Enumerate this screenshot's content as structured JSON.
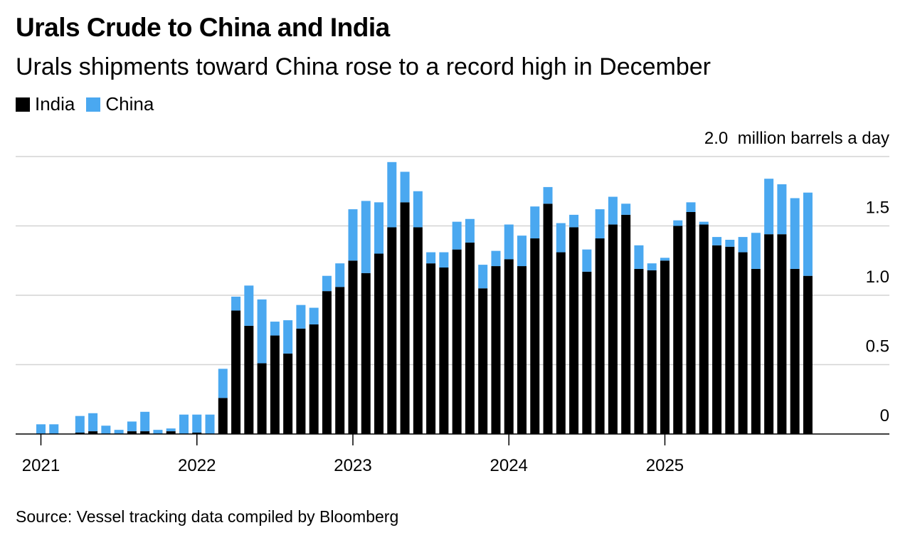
{
  "title": "Urals Crude to China and India",
  "subtitle": "Urals shipments toward China rose to a record high in December",
  "legend": [
    {
      "label": "India",
      "color": "#000000"
    },
    {
      "label": "China",
      "color": "#4aa8f0"
    }
  ],
  "unit_label": "million barrels a day",
  "source": "Source: Vessel tracking data compiled by Bloomberg",
  "chart_data": {
    "type": "bar",
    "stacked": true,
    "title": "Urals Crude to China and India",
    "subtitle": "Urals shipments toward China rose to a record high in December",
    "ylabel": "million barrels a day",
    "ylim": [
      0,
      2.0
    ],
    "yticks": [
      {
        "value": 0,
        "label": "0"
      },
      {
        "value": 0.5,
        "label": "0.5"
      },
      {
        "value": 1.0,
        "label": "1.0"
      },
      {
        "value": 1.5,
        "label": "1.5"
      },
      {
        "value": 2.0,
        "label": "2.0"
      }
    ],
    "xtick_labels": [
      {
        "label": "2021",
        "index": 0
      },
      {
        "label": "2022",
        "index": 12
      },
      {
        "label": "2023",
        "index": 24
      },
      {
        "label": "2024",
        "index": 36
      },
      {
        "label": "2025",
        "index": 48
      }
    ],
    "categories": [
      "2021-01",
      "2021-02",
      "2021-03",
      "2021-04",
      "2021-05",
      "2021-06",
      "2021-07",
      "2021-08",
      "2021-09",
      "2021-10",
      "2021-11",
      "2021-12",
      "2022-01",
      "2022-02",
      "2022-03",
      "2022-04",
      "2022-05",
      "2022-06",
      "2022-07",
      "2022-08",
      "2022-09",
      "2022-10",
      "2022-11",
      "2022-12",
      "2023-01",
      "2023-02",
      "2023-03",
      "2023-04",
      "2023-05",
      "2023-06",
      "2023-07",
      "2023-08",
      "2023-09",
      "2023-10",
      "2023-11",
      "2023-12",
      "2024-01",
      "2024-02",
      "2024-03",
      "2024-04",
      "2024-05",
      "2024-06",
      "2024-07",
      "2024-08",
      "2024-09",
      "2024-10",
      "2024-11",
      "2024-12",
      "2025-01",
      "2025-02",
      "2025-03",
      "2025-04",
      "2025-05",
      "2025-06",
      "2025-07",
      "2025-08",
      "2025-09",
      "2025-10",
      "2025-11",
      "2025-12"
    ],
    "series": [
      {
        "name": "India",
        "color": "#000000",
        "values": [
          0,
          0,
          0,
          0.01,
          0.02,
          0,
          0,
          0.02,
          0.02,
          0,
          0.02,
          0,
          0.01,
          0,
          0.26,
          0.89,
          0.78,
          0.51,
          0.71,
          0.58,
          0.76,
          0.79,
          1.03,
          1.06,
          1.25,
          1.16,
          1.3,
          1.49,
          1.67,
          1.49,
          1.23,
          1.2,
          1.33,
          1.38,
          1.05,
          1.21,
          1.26,
          1.21,
          1.41,
          1.66,
          1.31,
          1.49,
          1.17,
          1.41,
          1.51,
          1.58,
          1.19,
          1.18,
          1.25,
          1.5,
          1.6,
          1.51,
          1.36,
          1.35,
          1.31,
          1.19,
          1.44,
          1.44,
          1.19,
          1.14
        ]
      },
      {
        "name": "China",
        "color": "#4aa8f0",
        "values": [
          0.07,
          0.07,
          0,
          0.12,
          0.13,
          0.06,
          0.03,
          0.07,
          0.14,
          0.03,
          0.02,
          0.14,
          0.13,
          0.14,
          0.21,
          0.1,
          0.29,
          0.46,
          0.1,
          0.24,
          0.17,
          0.12,
          0.11,
          0.17,
          0.37,
          0.52,
          0.37,
          0.47,
          0.22,
          0.26,
          0.08,
          0.11,
          0.2,
          0.17,
          0.17,
          0.11,
          0.25,
          0.22,
          0.23,
          0.12,
          0.21,
          0.09,
          0.16,
          0.21,
          0.2,
          0.08,
          0.17,
          0.05,
          0.02,
          0.04,
          0.07,
          0.02,
          0.06,
          0.05,
          0.11,
          0.26,
          0.4,
          0.36,
          0.51,
          0.6
        ]
      }
    ],
    "legend_position": "top-left",
    "grid": true
  }
}
